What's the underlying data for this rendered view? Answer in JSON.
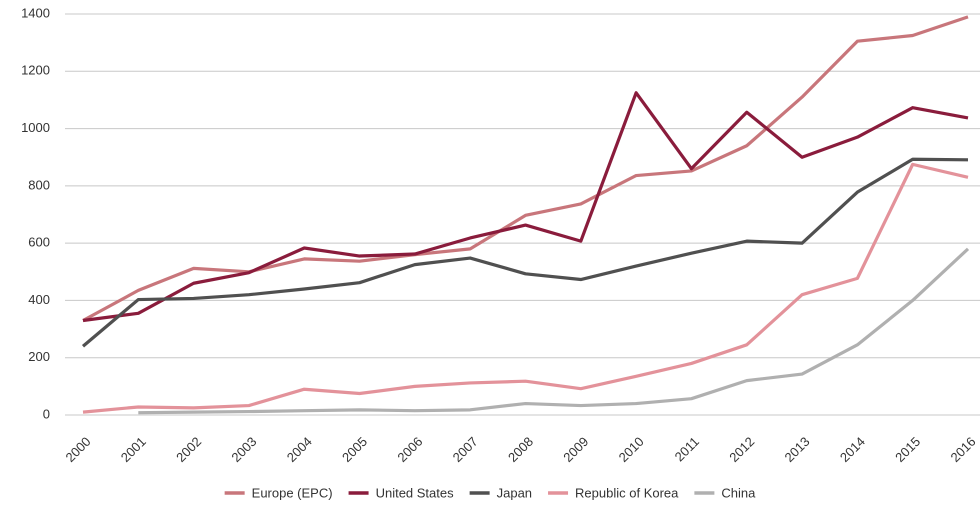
{
  "chart_data": {
    "type": "line",
    "categories": [
      "2000",
      "2001",
      "2002",
      "2003",
      "2004",
      "2005",
      "2006",
      "2007",
      "2008",
      "2009",
      "2010",
      "2011",
      "2012",
      "2013",
      "2014",
      "2015",
      "2016"
    ],
    "series": [
      {
        "name": "Europe (EPC)",
        "color": "#c8767b",
        "values": [
          330,
          435,
          512,
          500,
          545,
          537,
          560,
          580,
          697,
          737,
          836,
          852,
          940,
          1110,
          1305,
          1325,
          1390
        ]
      },
      {
        "name": "United States",
        "color": "#8a1c3c",
        "values": [
          330,
          355,
          460,
          497,
          583,
          555,
          562,
          618,
          663,
          607,
          1125,
          860,
          1057,
          900,
          970,
          1073,
          1037
        ]
      },
      {
        "name": "Japan",
        "color": "#505050",
        "values": [
          240,
          403,
          407,
          420,
          440,
          462,
          525,
          548,
          493,
          473,
          520,
          565,
          607,
          600,
          778,
          893,
          891
        ]
      },
      {
        "name": "Republic of Korea",
        "color": "#e3929a",
        "values": [
          10,
          28,
          25,
          33,
          90,
          75,
          100,
          112,
          118,
          92,
          135,
          180,
          245,
          420,
          477,
          875,
          830
        ]
      },
      {
        "name": "China",
        "color": "#b0b0b0",
        "values": [
          null,
          8,
          10,
          12,
          15,
          18,
          15,
          18,
          40,
          33,
          40,
          57,
          120,
          143,
          245,
          400,
          580
        ]
      }
    ],
    "ylim": [
      0,
      1400
    ],
    "yticks": [
      0,
      200,
      400,
      600,
      800,
      1000,
      1200,
      1400
    ],
    "grid": true
  }
}
